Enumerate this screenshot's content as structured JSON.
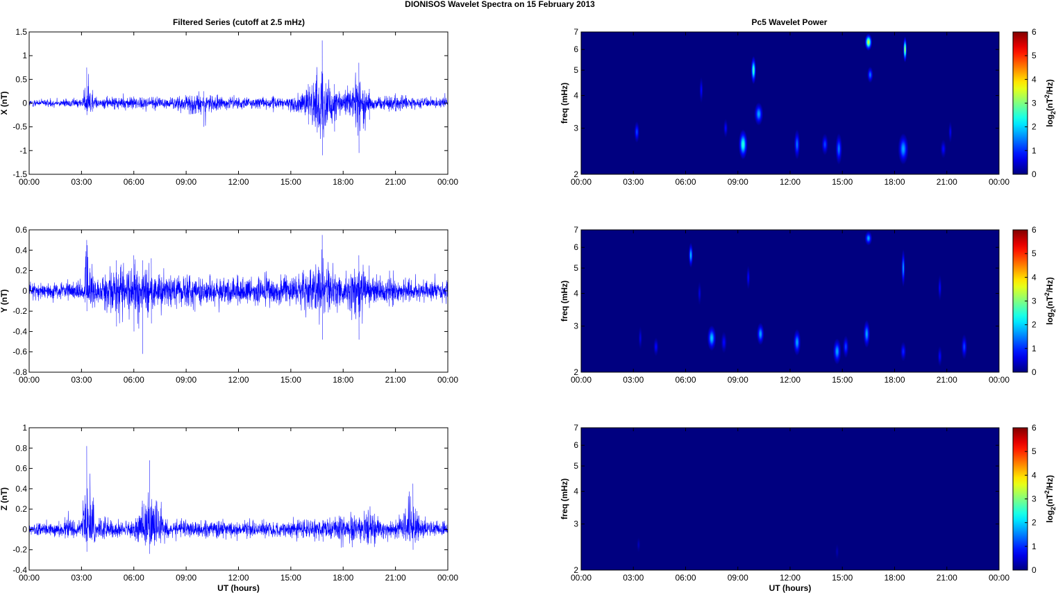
{
  "figure": {
    "title": "DIONISOS Wavelet Spectra on 15 February  2013",
    "left_title": "Filtered Series (cutoff at 2.5 mHz)",
    "right_title": "Pc5 Wavelet Power"
  },
  "colors": {
    "trace": "#0000ff",
    "jet_min": "#00008f",
    "jet_max": "#800000",
    "axes": "#000000"
  },
  "chart_data": [
    {
      "type": "line",
      "panel": "X",
      "title": "Filtered Series (cutoff at 2.5 mHz)",
      "xlabel": "",
      "ylabel": "X (nT)",
      "xlim": [
        0,
        24
      ],
      "ylim": [
        -1.5,
        1.5
      ],
      "yticks": [
        -1.5,
        -1,
        -0.5,
        0,
        0.5,
        1,
        1.5
      ],
      "ytick_labels": [
        "-1.5",
        "-1",
        "-0.5",
        "0",
        "0.5",
        "1",
        "1.5"
      ],
      "xticks": [
        0,
        3,
        6,
        9,
        12,
        15,
        18,
        21,
        24
      ],
      "xtick_labels": [
        "00:00",
        "03:00",
        "06:00",
        "09:00",
        "12:00",
        "15:00",
        "18:00",
        "21:00",
        "00:00"
      ],
      "grid": false,
      "envelope": {
        "x": [
          0,
          1,
          2,
          3,
          3.3,
          4,
          5,
          6,
          7,
          8,
          9,
          10,
          11,
          12,
          13,
          14,
          15,
          16,
          16.8,
          17.5,
          18,
          18.9,
          19.5,
          20,
          21,
          22,
          23,
          24
        ],
        "upper": [
          0.1,
          0.12,
          0.12,
          0.15,
          0.75,
          0.15,
          0.18,
          0.22,
          0.25,
          0.15,
          0.3,
          0.25,
          0.2,
          0.18,
          0.18,
          0.2,
          0.15,
          0.4,
          1.32,
          0.4,
          0.25,
          0.85,
          0.3,
          0.2,
          0.3,
          0.2,
          0.15,
          0.25
        ],
        "lower": [
          -0.1,
          -0.12,
          -0.12,
          -0.15,
          -0.25,
          -0.15,
          -0.18,
          -0.2,
          -0.2,
          -0.15,
          -0.3,
          -0.5,
          -0.2,
          -0.18,
          -0.18,
          -0.2,
          -0.2,
          -0.45,
          -1.1,
          -0.6,
          -0.3,
          -1.05,
          -0.35,
          -0.2,
          -0.25,
          -0.2,
          -0.12,
          -0.12
        ]
      }
    },
    {
      "type": "line",
      "panel": "Y",
      "xlabel": "",
      "ylabel": "Y (nT)",
      "xlim": [
        0,
        24
      ],
      "ylim": [
        -0.8,
        0.6
      ],
      "yticks": [
        -0.8,
        -0.6,
        -0.4,
        -0.2,
        0,
        0.2,
        0.4,
        0.6
      ],
      "ytick_labels": [
        "-0.8",
        "-0.6",
        "-0.4",
        "-0.2",
        "0",
        "0.2",
        "0.4",
        "0.6"
      ],
      "xticks": [
        0,
        3,
        6,
        9,
        12,
        15,
        18,
        21,
        24
      ],
      "xtick_labels": [
        "00:00",
        "03:00",
        "06:00",
        "09:00",
        "12:00",
        "15:00",
        "18:00",
        "21:00",
        "00:00"
      ],
      "grid": false,
      "envelope": {
        "x": [
          0,
          1,
          2,
          3,
          3.3,
          4,
          5,
          6,
          6.5,
          7,
          8,
          9,
          10,
          11,
          12,
          13,
          14,
          15,
          16,
          16.8,
          17.5,
          18,
          18.9,
          19.5,
          20,
          21,
          22,
          23,
          24
        ],
        "upper": [
          0.1,
          0.12,
          0.12,
          0.15,
          0.5,
          0.18,
          0.3,
          0.35,
          0.3,
          0.32,
          0.2,
          0.25,
          0.22,
          0.2,
          0.2,
          0.2,
          0.2,
          0.22,
          0.3,
          0.55,
          0.25,
          0.2,
          0.35,
          0.25,
          0.22,
          0.2,
          0.15,
          0.15,
          0.15
        ],
        "lower": [
          -0.1,
          -0.12,
          -0.12,
          -0.15,
          -0.2,
          -0.2,
          -0.35,
          -0.4,
          -0.62,
          -0.32,
          -0.25,
          -0.25,
          -0.22,
          -0.2,
          -0.2,
          -0.2,
          -0.2,
          -0.25,
          -0.3,
          -0.48,
          -0.3,
          -0.2,
          -0.48,
          -0.25,
          -0.2,
          -0.2,
          -0.15,
          -0.15,
          -0.15
        ]
      }
    },
    {
      "type": "line",
      "panel": "Z",
      "xlabel": "UT (hours)",
      "ylabel": "Z (nT)",
      "xlim": [
        0,
        24
      ],
      "ylim": [
        -0.4,
        1
      ],
      "yticks": [
        -0.4,
        -0.2,
        0,
        0.2,
        0.4,
        0.6,
        0.8,
        1
      ],
      "ytick_labels": [
        "-0.4",
        "-0.2",
        "0",
        "0.2",
        "0.4",
        "0.6",
        "0.8",
        "1"
      ],
      "xticks": [
        0,
        3,
        6,
        9,
        12,
        15,
        18,
        21,
        24
      ],
      "xtick_labels": [
        "00:00",
        "03:00",
        "06:00",
        "09:00",
        "12:00",
        "15:00",
        "18:00",
        "21:00",
        "00:00"
      ],
      "grid": false,
      "envelope": {
        "x": [
          0,
          1,
          2,
          2.2,
          3,
          3.3,
          4,
          5,
          6,
          6.9,
          8,
          9,
          10,
          11,
          12,
          13,
          14,
          15,
          16,
          17,
          18,
          19,
          19.4,
          20,
          21,
          22,
          22.5,
          23,
          24
        ],
        "upper": [
          0.08,
          0.1,
          0.1,
          0.2,
          0.12,
          0.82,
          0.15,
          0.12,
          0.15,
          0.68,
          0.12,
          0.12,
          0.12,
          0.12,
          0.12,
          0.12,
          0.12,
          0.12,
          0.15,
          0.18,
          0.18,
          0.2,
          0.28,
          0.15,
          0.12,
          0.45,
          0.15,
          0.12,
          0.12
        ],
        "lower": [
          -0.08,
          -0.1,
          -0.1,
          -0.1,
          -0.12,
          -0.22,
          -0.15,
          -0.12,
          -0.15,
          -0.24,
          -0.12,
          -0.12,
          -0.12,
          -0.12,
          -0.12,
          -0.12,
          -0.12,
          -0.12,
          -0.15,
          -0.18,
          -0.18,
          -0.2,
          -0.22,
          -0.15,
          -0.12,
          -0.2,
          -0.15,
          -0.12,
          -0.12
        ]
      }
    },
    {
      "type": "heatmap",
      "panel": "X",
      "title": "Pc5 Wavelet Power",
      "xlabel": "",
      "ylabel": "freq (mHz)",
      "colorbar_label": "log2(nT2/Hz)",
      "xlim": [
        0,
        24
      ],
      "ylim": [
        2,
        7
      ],
      "yscale": "log",
      "yticks": [
        2,
        3,
        4,
        5,
        6,
        7
      ],
      "ytick_labels": [
        "2",
        "3",
        "4",
        "5",
        "6",
        "7"
      ],
      "xticks": [
        0,
        3,
        6,
        9,
        12,
        15,
        18,
        21,
        24
      ],
      "xtick_labels": [
        "00:00",
        "03:00",
        "06:00",
        "09:00",
        "12:00",
        "15:00",
        "18:00",
        "21:00",
        "00:00"
      ],
      "clim": [
        0,
        6
      ],
      "cbar_ticks": [
        0,
        1,
        2,
        3,
        4,
        5,
        6
      ],
      "blobs": [
        {
          "t": 3.2,
          "f": 2.9,
          "dt": 0.07,
          "df": 0.2,
          "peak": 1.2
        },
        {
          "t": 6.9,
          "f": 4.2,
          "dt": 0.05,
          "df": 0.35,
          "peak": 0.8
        },
        {
          "t": 8.3,
          "f": 3.0,
          "dt": 0.06,
          "df": 0.18,
          "peak": 0.8
        },
        {
          "t": 9.3,
          "f": 2.6,
          "dt": 0.12,
          "df": 0.25,
          "peak": 2.6
        },
        {
          "t": 9.9,
          "f": 5.0,
          "dt": 0.07,
          "df": 0.45,
          "peak": 2.8
        },
        {
          "t": 10.2,
          "f": 3.4,
          "dt": 0.12,
          "df": 0.25,
          "peak": 1.8
        },
        {
          "t": 12.4,
          "f": 2.6,
          "dt": 0.08,
          "df": 0.25,
          "peak": 1.5
        },
        {
          "t": 14.0,
          "f": 2.6,
          "dt": 0.09,
          "df": 0.18,
          "peak": 1.2
        },
        {
          "t": 14.8,
          "f": 2.5,
          "dt": 0.09,
          "df": 0.25,
          "peak": 1.5
        },
        {
          "t": 16.5,
          "f": 6.4,
          "dt": 0.1,
          "df": 0.35,
          "peak": 3.6
        },
        {
          "t": 16.6,
          "f": 4.8,
          "dt": 0.08,
          "df": 0.25,
          "peak": 1.5
        },
        {
          "t": 18.5,
          "f": 2.5,
          "dt": 0.14,
          "df": 0.25,
          "peak": 1.8
        },
        {
          "t": 18.6,
          "f": 6.0,
          "dt": 0.05,
          "df": 0.5,
          "peak": 3.5
        },
        {
          "t": 20.8,
          "f": 2.5,
          "dt": 0.08,
          "df": 0.15,
          "peak": 0.8
        },
        {
          "t": 21.2,
          "f": 2.9,
          "dt": 0.05,
          "df": 0.2,
          "peak": 0.7
        }
      ]
    },
    {
      "type": "heatmap",
      "panel": "Y",
      "xlabel": "",
      "ylabel": "freq (mHz)",
      "colorbar_label": "log2(nT2/Hz)",
      "xlim": [
        0,
        24
      ],
      "ylim": [
        2,
        7
      ],
      "yscale": "log",
      "yticks": [
        2,
        3,
        4,
        5,
        6,
        7
      ],
      "ytick_labels": [
        "2",
        "3",
        "4",
        "5",
        "6",
        "7"
      ],
      "xticks": [
        0,
        3,
        6,
        9,
        12,
        15,
        18,
        21,
        24
      ],
      "xtick_labels": [
        "00:00",
        "03:00",
        "06:00",
        "09:00",
        "12:00",
        "15:00",
        "18:00",
        "21:00",
        "00:00"
      ],
      "clim": [
        0,
        6
      ],
      "cbar_ticks": [
        0,
        1,
        2,
        3,
        4,
        5,
        6
      ],
      "blobs": [
        {
          "t": 3.4,
          "f": 2.7,
          "dt": 0.05,
          "df": 0.2,
          "peak": 0.6
        },
        {
          "t": 4.3,
          "f": 2.5,
          "dt": 0.07,
          "df": 0.15,
          "peak": 0.8
        },
        {
          "t": 6.3,
          "f": 5.6,
          "dt": 0.06,
          "df": 0.45,
          "peak": 2.0
        },
        {
          "t": 6.8,
          "f": 4.0,
          "dt": 0.05,
          "df": 0.3,
          "peak": 0.6
        },
        {
          "t": 7.5,
          "f": 2.7,
          "dt": 0.12,
          "df": 0.22,
          "peak": 2.0
        },
        {
          "t": 8.2,
          "f": 2.6,
          "dt": 0.08,
          "df": 0.18,
          "peak": 0.8
        },
        {
          "t": 9.6,
          "f": 4.6,
          "dt": 0.05,
          "df": 0.35,
          "peak": 0.8
        },
        {
          "t": 10.3,
          "f": 2.8,
          "dt": 0.1,
          "df": 0.2,
          "peak": 1.8
        },
        {
          "t": 12.4,
          "f": 2.6,
          "dt": 0.1,
          "df": 0.22,
          "peak": 1.8
        },
        {
          "t": 14.7,
          "f": 2.4,
          "dt": 0.11,
          "df": 0.2,
          "peak": 1.8
        },
        {
          "t": 15.2,
          "f": 2.5,
          "dt": 0.08,
          "df": 0.18,
          "peak": 1.2
        },
        {
          "t": 16.4,
          "f": 2.8,
          "dt": 0.09,
          "df": 0.25,
          "peak": 1.8
        },
        {
          "t": 16.5,
          "f": 6.5,
          "dt": 0.1,
          "df": 0.3,
          "peak": 1.8
        },
        {
          "t": 18.5,
          "f": 5.0,
          "dt": 0.05,
          "df": 0.6,
          "peak": 1.8
        },
        {
          "t": 18.5,
          "f": 2.4,
          "dt": 0.08,
          "df": 0.15,
          "peak": 1.0
        },
        {
          "t": 20.6,
          "f": 2.3,
          "dt": 0.06,
          "df": 0.15,
          "peak": 0.8
        },
        {
          "t": 20.6,
          "f": 4.2,
          "dt": 0.05,
          "df": 0.35,
          "peak": 0.8
        },
        {
          "t": 22.0,
          "f": 2.5,
          "dt": 0.08,
          "df": 0.2,
          "peak": 1.2
        }
      ]
    },
    {
      "type": "heatmap",
      "panel": "Z",
      "xlabel": "UT (hours)",
      "ylabel": "freq (mHz)",
      "colorbar_label": "log2(nT2/Hz)",
      "xlim": [
        0,
        24
      ],
      "ylim": [
        2,
        7
      ],
      "yscale": "log",
      "yticks": [
        2,
        3,
        4,
        5,
        6,
        7
      ],
      "ytick_labels": [
        "2",
        "3",
        "4",
        "5",
        "6",
        "7"
      ],
      "xticks": [
        0,
        3,
        6,
        9,
        12,
        15,
        18,
        21,
        24
      ],
      "xtick_labels": [
        "00:00",
        "03:00",
        "06:00",
        "09:00",
        "12:00",
        "15:00",
        "18:00",
        "21:00",
        "00:00"
      ],
      "clim": [
        0,
        6
      ],
      "cbar_ticks": [
        0,
        1,
        2,
        3,
        4,
        5,
        6
      ],
      "blobs": [
        {
          "t": 3.3,
          "f": 2.5,
          "dt": 0.05,
          "df": 0.12,
          "peak": 0.35
        },
        {
          "t": 14.7,
          "f": 2.35,
          "dt": 0.05,
          "df": 0.12,
          "peak": 0.3
        }
      ]
    }
  ]
}
